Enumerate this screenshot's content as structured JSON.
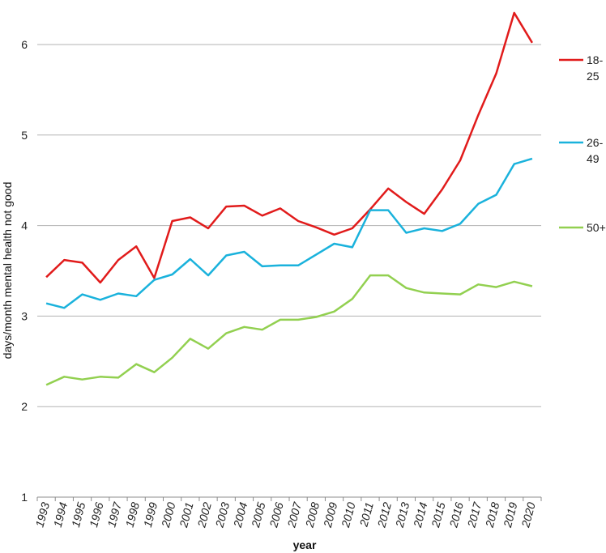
{
  "chart_data": {
    "type": "line",
    "title": "",
    "xlabel": "year",
    "ylabel": "days/month mental health not good",
    "ylim": [
      1,
      6.5
    ],
    "yticks": [
      1,
      2,
      3,
      4,
      5,
      6
    ],
    "grid": "horizontal",
    "legend_position": "right",
    "x": [
      "1993",
      "1994",
      "1995",
      "1996",
      "1997",
      "1998",
      "1999",
      "2000",
      "2001",
      "2002",
      "2003",
      "2004",
      "2005",
      "2006",
      "2007",
      "2008",
      "2009",
      "2010",
      "2011",
      "2012",
      "2013",
      "2014",
      "2015",
      "2016",
      "2017",
      "2018",
      "2019",
      "2020"
    ],
    "series": [
      {
        "name": "18-25",
        "legend_lines": [
          "18-",
          "25"
        ],
        "color": "#e11b1b",
        "values": [
          3.43,
          3.62,
          3.59,
          3.37,
          3.62,
          3.77,
          3.42,
          4.05,
          4.09,
          3.97,
          4.21,
          4.22,
          4.11,
          4.19,
          4.05,
          3.98,
          3.9,
          3.97,
          4.18,
          4.41,
          4.26,
          4.13,
          4.4,
          4.72,
          5.22,
          5.68,
          6.35,
          6.02
        ]
      },
      {
        "name": "26-49",
        "legend_lines": [
          "26-",
          "49"
        ],
        "color": "#1ab2dc",
        "values": [
          3.14,
          3.09,
          3.24,
          3.18,
          3.25,
          3.22,
          3.4,
          3.46,
          3.63,
          3.45,
          3.67,
          3.71,
          3.55,
          3.56,
          3.56,
          3.68,
          3.8,
          3.76,
          4.17,
          4.17,
          3.92,
          3.97,
          3.94,
          4.02,
          4.24,
          4.34,
          4.68,
          4.74
        ]
      },
      {
        "name": "50+",
        "legend_lines": [
          "50+"
        ],
        "color": "#92d050",
        "values": [
          2.24,
          2.33,
          2.3,
          2.33,
          2.32,
          2.47,
          2.38,
          2.54,
          2.75,
          2.64,
          2.81,
          2.88,
          2.85,
          2.96,
          2.96,
          2.99,
          3.05,
          3.19,
          3.45,
          3.45,
          3.31,
          3.26,
          3.25,
          3.24,
          3.35,
          3.32,
          3.38,
          3.33
        ]
      }
    ]
  }
}
